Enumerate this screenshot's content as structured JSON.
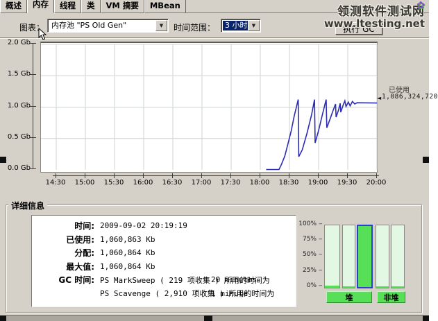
{
  "watermark": {
    "line1": "领测软件测试网",
    "line2": "www.ltesting.net",
    "flower_icon": "✿"
  },
  "tabs": [
    {
      "label": "概述",
      "active": false
    },
    {
      "label": "内存",
      "active": true
    },
    {
      "label": "线程",
      "active": false
    },
    {
      "label": "类",
      "active": false
    },
    {
      "label": "VM 摘要",
      "active": false
    },
    {
      "label": "MBean",
      "active": false
    }
  ],
  "toolbar": {
    "chart_label": "图表：",
    "chart_value": "内存池 \"PS Old Gen\"",
    "range_label": "时间范围：",
    "range_value": "3 小时",
    "gc_button": "执行 GC"
  },
  "chart_data": {
    "type": "line",
    "y_ticks": [
      "2.0 Gb",
      "1.5 Gb",
      "1.0 Gb",
      "0.5 Gb",
      "0.0 Gb"
    ],
    "ylim": [
      0,
      2
    ],
    "x_ticks": [
      "14:30",
      "15:00",
      "15:30",
      "16:00",
      "16:30",
      "17:00",
      "17:30",
      "18:00",
      "18:30",
      "19:00",
      "19:30",
      "20:00"
    ],
    "x_start_hour": 14.5,
    "x_end_hour": 20.0,
    "grid": true,
    "legend_position": "right",
    "series": [
      {
        "name": "已使用",
        "color": "#2b2bb4",
        "points_hour_gb": [
          [
            18.1,
            0.005
          ],
          [
            18.32,
            0.005
          ],
          [
            18.36,
            0.08
          ],
          [
            18.42,
            0.22
          ],
          [
            18.47,
            0.4
          ],
          [
            18.53,
            0.62
          ],
          [
            18.58,
            0.85
          ],
          [
            18.65,
            1.12
          ],
          [
            18.66,
            0.21
          ],
          [
            18.72,
            0.32
          ],
          [
            18.8,
            0.58
          ],
          [
            18.88,
            0.88
          ],
          [
            18.93,
            1.12
          ],
          [
            18.94,
            0.43
          ],
          [
            19.0,
            0.63
          ],
          [
            19.07,
            0.9
          ],
          [
            19.13,
            1.12
          ],
          [
            19.14,
            0.67
          ],
          [
            19.2,
            0.82
          ],
          [
            19.25,
            0.95
          ],
          [
            19.29,
            1.05
          ],
          [
            19.3,
            0.84
          ],
          [
            19.34,
            0.95
          ],
          [
            19.37,
            1.06
          ],
          [
            19.38,
            0.92
          ],
          [
            19.42,
            1.03
          ],
          [
            19.45,
            1.1
          ],
          [
            19.47,
            1.01
          ],
          [
            19.51,
            1.08
          ],
          [
            19.54,
            1.02
          ],
          [
            19.58,
            1.09
          ],
          [
            19.62,
            1.05
          ],
          [
            19.66,
            1.07
          ],
          [
            20.0,
            1.065
          ]
        ]
      }
    ],
    "current_marker": {
      "label": "已使用",
      "value": "1,086,324,720"
    }
  },
  "details": {
    "title": "详细信息",
    "rows": [
      {
        "label": "时间:",
        "value": "2009-09-02 20:19:19",
        "time": ""
      },
      {
        "label": "已使用:",
        "value": "1,060,863 Kb",
        "time": ""
      },
      {
        "label": "分配:",
        "value": "1,060,864 Kb",
        "time": ""
      },
      {
        "label": "最大值:",
        "value": "1,060,864 Kb",
        "time": ""
      },
      {
        "label": "GC 时间:",
        "value": "PS MarkSweep ( 219 项收集 ) 所用的时间为",
        "time": "20 minutes"
      },
      {
        "label": "",
        "value": "PS Scavenge ( 2,910 项收集 ) 所用的时间为",
        "time": "1 minute"
      }
    ]
  },
  "gauge": {
    "scale": [
      "100%",
      "75%",
      "50%",
      "25%",
      "0%"
    ],
    "bars": [
      {
        "name": "eden-space",
        "fill_pct": 3,
        "selected": false
      },
      {
        "name": "survivor",
        "fill_pct": 2,
        "selected": false
      },
      {
        "name": "ps-old-gen",
        "fill_pct": 100,
        "selected": true
      },
      {
        "name": "non-heap-1",
        "fill_pct": 2,
        "selected": false
      },
      {
        "name": "non-heap-2",
        "fill_pct": 2,
        "selected": false
      }
    ],
    "buttons": [
      {
        "label": "堆"
      },
      {
        "label": "非堆"
      }
    ]
  }
}
